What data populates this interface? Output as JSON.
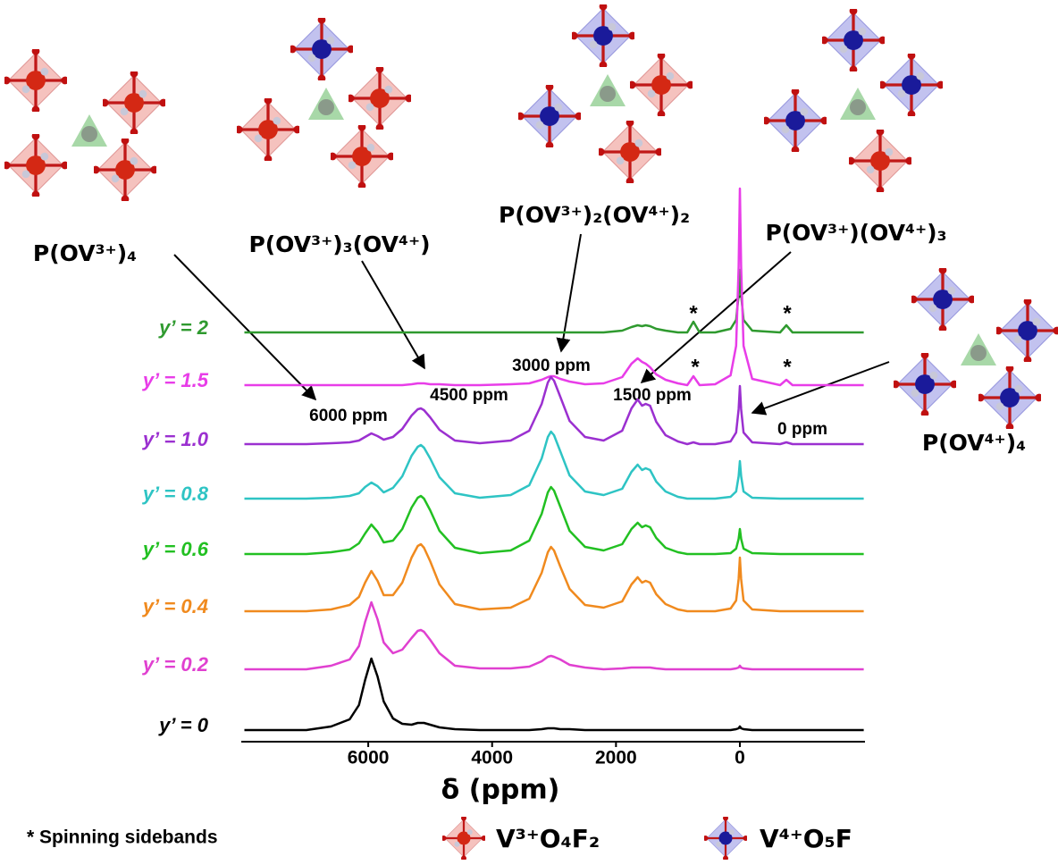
{
  "chart_data": {
    "type": "line",
    "x_label": "δ (ppm)",
    "xlim": [
      8050,
      -2020
    ],
    "xticks": [
      6000,
      4000,
      2000,
      0
    ],
    "x": [
      8000,
      7000,
      6600,
      6300,
      6150,
      6050,
      5950,
      5850,
      5750,
      5600,
      5450,
      5300,
      5200,
      5150,
      5100,
      5000,
      4850,
      4600,
      4200,
      3700,
      3400,
      3200,
      3100,
      3050,
      3000,
      2900,
      2750,
      2500,
      2200,
      1900,
      1750,
      1650,
      1580,
      1520,
      1450,
      1350,
      1200,
      1000,
      850,
      750,
      650,
      400,
      150,
      60,
      20,
      0,
      -20,
      -60,
      -200,
      -650,
      -750,
      -850,
      -2000
    ],
    "series": [
      {
        "name": "y’ = 2",
        "color": "#2f9a2f",
        "values": [
          0,
          0,
          0,
          0,
          0,
          0,
          0,
          0,
          0,
          0,
          0,
          0,
          0,
          0,
          0,
          0,
          0,
          0,
          0,
          0,
          0,
          0,
          0,
          0,
          0,
          0,
          0,
          0,
          0,
          2,
          6,
          8,
          7,
          8,
          7,
          4,
          2,
          0,
          0,
          12,
          0,
          0,
          4,
          14,
          42,
          70,
          42,
          14,
          2,
          0,
          8,
          0,
          0
        ]
      },
      {
        "name": "y’ = 1.5",
        "color": "#e83de8",
        "values": [
          0,
          0,
          0,
          0,
          0,
          0,
          0,
          0,
          0,
          0,
          0,
          1,
          2,
          2,
          2,
          1,
          1,
          0,
          0,
          1,
          2,
          6,
          9,
          10,
          10,
          7,
          4,
          1,
          2,
          9,
          24,
          30,
          26,
          24,
          20,
          12,
          6,
          2,
          0,
          10,
          0,
          1,
          11,
          44,
          132,
          220,
          132,
          44,
          7,
          0,
          6,
          0,
          0
        ]
      },
      {
        "name": "y’ = 1.0",
        "color": "#9b30d0",
        "values": [
          0,
          0,
          1,
          2,
          4,
          8,
          12,
          9,
          5,
          8,
          17,
          32,
          39,
          40,
          38,
          30,
          16,
          4,
          1,
          4,
          15,
          45,
          69,
          75,
          71,
          53,
          26,
          8,
          4,
          15,
          40,
          50,
          43,
          45,
          43,
          25,
          10,
          3,
          0,
          2,
          0,
          0,
          3,
          13,
          39,
          65,
          39,
          13,
          2,
          0,
          2,
          0,
          0
        ]
      },
      {
        "name": "y’ = 0.8",
        "color": "#2ec4c4",
        "values": [
          0,
          0,
          1,
          3,
          6,
          13,
          18,
          14,
          7,
          12,
          25,
          48,
          58,
          60,
          57,
          45,
          24,
          6,
          1,
          4,
          15,
          45,
          69,
          75,
          71,
          53,
          26,
          8,
          4,
          11,
          30,
          38,
          32,
          34,
          32,
          19,
          8,
          2,
          0,
          0,
          0,
          0,
          2,
          8,
          25,
          42,
          25,
          8,
          1,
          0,
          0,
          0,
          0
        ]
      },
      {
        "name": "y’ = 0.6",
        "color": "#22c022",
        "values": [
          0,
          0,
          2,
          5,
          12,
          23,
          33,
          25,
          13,
          15,
          28,
          52,
          63,
          65,
          62,
          49,
          26,
          7,
          1,
          4,
          15,
          45,
          69,
          75,
          71,
          53,
          26,
          8,
          4,
          11,
          28,
          35,
          30,
          32,
          30,
          18,
          7,
          2,
          0,
          0,
          0,
          0,
          1,
          6,
          17,
          28,
          17,
          6,
          1,
          0,
          0,
          0,
          0
        ]
      },
      {
        "name": "y’ = 0.4",
        "color": "#f08a1e",
        "values": [
          0,
          0,
          2,
          7,
          16,
          32,
          45,
          34,
          18,
          18,
          32,
          60,
          73,
          75,
          71,
          56,
          30,
          8,
          2,
          4,
          14,
          43,
          66,
          72,
          68,
          50,
          25,
          7,
          4,
          11,
          30,
          38,
          32,
          34,
          32,
          19,
          8,
          2,
          0,
          0,
          0,
          0,
          3,
          12,
          36,
          60,
          36,
          12,
          2,
          0,
          0,
          0,
          0
        ]
      },
      {
        "name": "y’ = 0.2",
        "color": "#e040d0",
        "values": [
          0,
          0,
          4,
          11,
          26,
          53,
          75,
          56,
          30,
          18,
          22,
          35,
          43,
          44,
          42,
          33,
          18,
          4,
          1,
          1,
          3,
          9,
          14,
          15,
          14,
          11,
          5,
          2,
          0,
          1,
          2,
          2,
          2,
          2,
          2,
          1,
          0,
          0,
          0,
          0,
          0,
          0,
          0,
          1,
          2,
          4,
          2,
          1,
          0,
          0,
          0,
          0,
          0
        ]
      },
      {
        "name": "y’ = 0",
        "color": "#000000",
        "values": [
          0,
          0,
          4,
          12,
          28,
          56,
          80,
          60,
          32,
          13,
          7,
          6,
          8,
          8,
          8,
          6,
          3,
          1,
          0,
          0,
          0,
          1,
          2,
          2,
          2,
          1,
          1,
          0,
          0,
          0,
          0,
          0,
          0,
          0,
          0,
          0,
          0,
          0,
          0,
          0,
          0,
          0,
          0,
          1,
          2,
          4,
          2,
          1,
          0,
          0,
          0,
          0,
          0
        ]
      }
    ],
    "annotations": [
      "6000 ppm",
      "4500 ppm",
      "3000 ppm",
      "1500 ppm",
      "0 ppm"
    ],
    "sideband_marker": "*",
    "structure_labels": [
      "P(OV³⁺)₄",
      "P(OV³⁺)₃(OV⁴⁺)",
      "P(OV³⁺)₂(OV⁴⁺)₂",
      "P(OV³⁺)(OV⁴⁺)₃",
      "P(OV⁴⁺)₄"
    ],
    "footnote": "* Spinning sidebands",
    "legend_labels": [
      "V³⁺O₄F₂",
      "V⁴⁺O₅F"
    ]
  }
}
